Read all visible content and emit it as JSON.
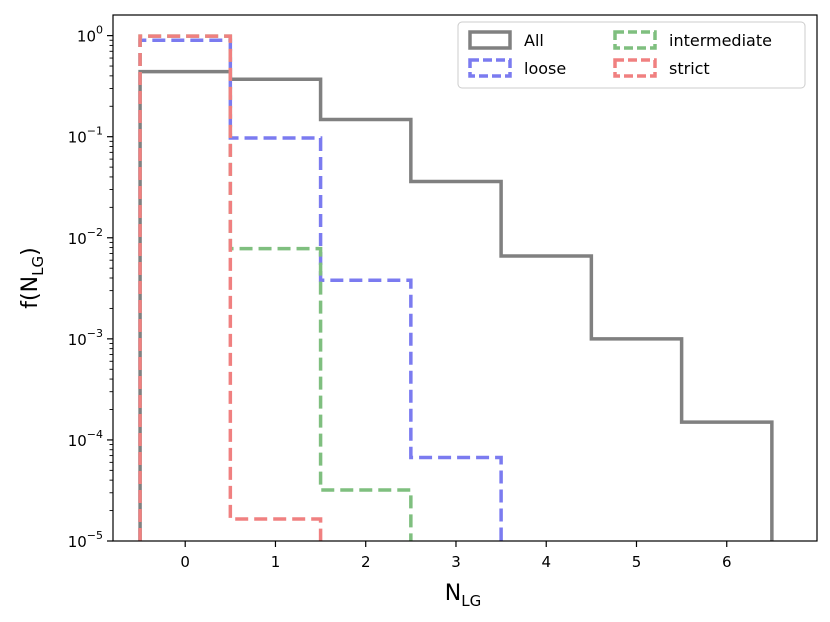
{
  "chart_data": {
    "type": "step-histogram",
    "xlabel": "N",
    "xlabel_sub": "LG",
    "ylabel": "f(N",
    "ylabel_sub": "LG",
    "ylabel_close": ")",
    "yscale": "log",
    "ylim": [
      1e-05,
      1.6
    ],
    "xlim": [
      -0.8,
      7.0
    ],
    "x_ticks": [
      0,
      1,
      2,
      3,
      4,
      5,
      6
    ],
    "x_tick_labels": [
      "0",
      "1",
      "2",
      "3",
      "4",
      "5",
      "6"
    ],
    "y_tick_exponents": [
      0,
      -1,
      -2,
      -3,
      -4,
      -5
    ],
    "y_tick_base": "10",
    "y_tick_exponent_labels": [
      "0",
      "−1",
      "−2",
      "−3",
      "−4",
      "−5"
    ],
    "legend": {
      "placement": "top-right",
      "columns": 2
    },
    "series": [
      {
        "name": "All",
        "color": "#808080",
        "linestyle": "solid",
        "bins": [
          0,
          1,
          2,
          3,
          4,
          5,
          6
        ],
        "values": [
          0.44,
          0.37,
          0.148,
          0.036,
          0.0066,
          0.001,
          0.00015
        ]
      },
      {
        "name": "loose",
        "color": "#7b7bf0",
        "linestyle": "dashed",
        "bins": [
          0,
          1,
          2,
          3
        ],
        "values": [
          0.9,
          0.097,
          0.0038,
          6.7e-05
        ]
      },
      {
        "name": "intermediate",
        "color": "#7fbf7f",
        "linestyle": "dashed",
        "bins": [
          0,
          1,
          2
        ],
        "values": [
          0.99,
          0.0078,
          3.2e-05
        ]
      },
      {
        "name": "strict",
        "color": "#f08080",
        "linestyle": "dashed",
        "bins": [
          0,
          1
        ],
        "values": [
          0.99,
          1.65e-05
        ]
      }
    ]
  }
}
